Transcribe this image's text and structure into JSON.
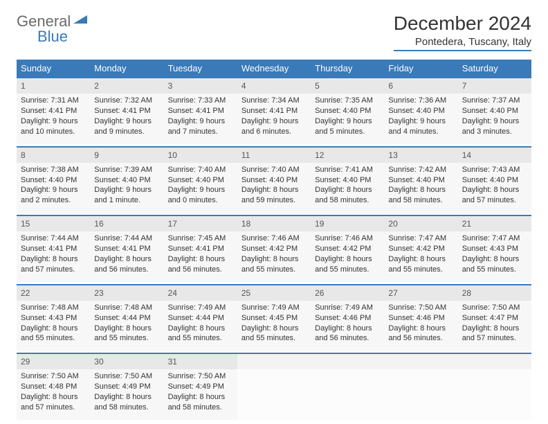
{
  "logo": {
    "general": "General",
    "blue": "Blue"
  },
  "title": "December 2024",
  "location": "Pontedera, Tuscany, Italy",
  "colors": {
    "header_bg": "#3a7ab8",
    "header_text": "#ffffff",
    "daynum_bg": "#e8e8e8",
    "cell_bg": "#f7f7f7",
    "border": "#3a7ab8",
    "text": "#333333"
  },
  "day_headers": [
    "Sunday",
    "Monday",
    "Tuesday",
    "Wednesday",
    "Thursday",
    "Friday",
    "Saturday"
  ],
  "weeks": [
    [
      {
        "n": "1",
        "sr": "7:31 AM",
        "ss": "4:41 PM",
        "dl": "9 hours and 10 minutes."
      },
      {
        "n": "2",
        "sr": "7:32 AM",
        "ss": "4:41 PM",
        "dl": "9 hours and 9 minutes."
      },
      {
        "n": "3",
        "sr": "7:33 AM",
        "ss": "4:41 PM",
        "dl": "9 hours and 7 minutes."
      },
      {
        "n": "4",
        "sr": "7:34 AM",
        "ss": "4:41 PM",
        "dl": "9 hours and 6 minutes."
      },
      {
        "n": "5",
        "sr": "7:35 AM",
        "ss": "4:40 PM",
        "dl": "9 hours and 5 minutes."
      },
      {
        "n": "6",
        "sr": "7:36 AM",
        "ss": "4:40 PM",
        "dl": "9 hours and 4 minutes."
      },
      {
        "n": "7",
        "sr": "7:37 AM",
        "ss": "4:40 PM",
        "dl": "9 hours and 3 minutes."
      }
    ],
    [
      {
        "n": "8",
        "sr": "7:38 AM",
        "ss": "4:40 PM",
        "dl": "9 hours and 2 minutes."
      },
      {
        "n": "9",
        "sr": "7:39 AM",
        "ss": "4:40 PM",
        "dl": "9 hours and 1 minute."
      },
      {
        "n": "10",
        "sr": "7:40 AM",
        "ss": "4:40 PM",
        "dl": "9 hours and 0 minutes."
      },
      {
        "n": "11",
        "sr": "7:40 AM",
        "ss": "4:40 PM",
        "dl": "8 hours and 59 minutes."
      },
      {
        "n": "12",
        "sr": "7:41 AM",
        "ss": "4:40 PM",
        "dl": "8 hours and 58 minutes."
      },
      {
        "n": "13",
        "sr": "7:42 AM",
        "ss": "4:40 PM",
        "dl": "8 hours and 58 minutes."
      },
      {
        "n": "14",
        "sr": "7:43 AM",
        "ss": "4:40 PM",
        "dl": "8 hours and 57 minutes."
      }
    ],
    [
      {
        "n": "15",
        "sr": "7:44 AM",
        "ss": "4:41 PM",
        "dl": "8 hours and 57 minutes."
      },
      {
        "n": "16",
        "sr": "7:44 AM",
        "ss": "4:41 PM",
        "dl": "8 hours and 56 minutes."
      },
      {
        "n": "17",
        "sr": "7:45 AM",
        "ss": "4:41 PM",
        "dl": "8 hours and 56 minutes."
      },
      {
        "n": "18",
        "sr": "7:46 AM",
        "ss": "4:42 PM",
        "dl": "8 hours and 55 minutes."
      },
      {
        "n": "19",
        "sr": "7:46 AM",
        "ss": "4:42 PM",
        "dl": "8 hours and 55 minutes."
      },
      {
        "n": "20",
        "sr": "7:47 AM",
        "ss": "4:42 PM",
        "dl": "8 hours and 55 minutes."
      },
      {
        "n": "21",
        "sr": "7:47 AM",
        "ss": "4:43 PM",
        "dl": "8 hours and 55 minutes."
      }
    ],
    [
      {
        "n": "22",
        "sr": "7:48 AM",
        "ss": "4:43 PM",
        "dl": "8 hours and 55 minutes."
      },
      {
        "n": "23",
        "sr": "7:48 AM",
        "ss": "4:44 PM",
        "dl": "8 hours and 55 minutes."
      },
      {
        "n": "24",
        "sr": "7:49 AM",
        "ss": "4:44 PM",
        "dl": "8 hours and 55 minutes."
      },
      {
        "n": "25",
        "sr": "7:49 AM",
        "ss": "4:45 PM",
        "dl": "8 hours and 55 minutes."
      },
      {
        "n": "26",
        "sr": "7:49 AM",
        "ss": "4:46 PM",
        "dl": "8 hours and 56 minutes."
      },
      {
        "n": "27",
        "sr": "7:50 AM",
        "ss": "4:46 PM",
        "dl": "8 hours and 56 minutes."
      },
      {
        "n": "28",
        "sr": "7:50 AM",
        "ss": "4:47 PM",
        "dl": "8 hours and 57 minutes."
      }
    ],
    [
      {
        "n": "29",
        "sr": "7:50 AM",
        "ss": "4:48 PM",
        "dl": "8 hours and 57 minutes."
      },
      {
        "n": "30",
        "sr": "7:50 AM",
        "ss": "4:49 PM",
        "dl": "8 hours and 58 minutes."
      },
      {
        "n": "31",
        "sr": "7:50 AM",
        "ss": "4:49 PM",
        "dl": "8 hours and 58 minutes."
      },
      null,
      null,
      null,
      null
    ]
  ],
  "labels": {
    "sunrise": "Sunrise:",
    "sunset": "Sunset:",
    "daylight": "Daylight:"
  }
}
